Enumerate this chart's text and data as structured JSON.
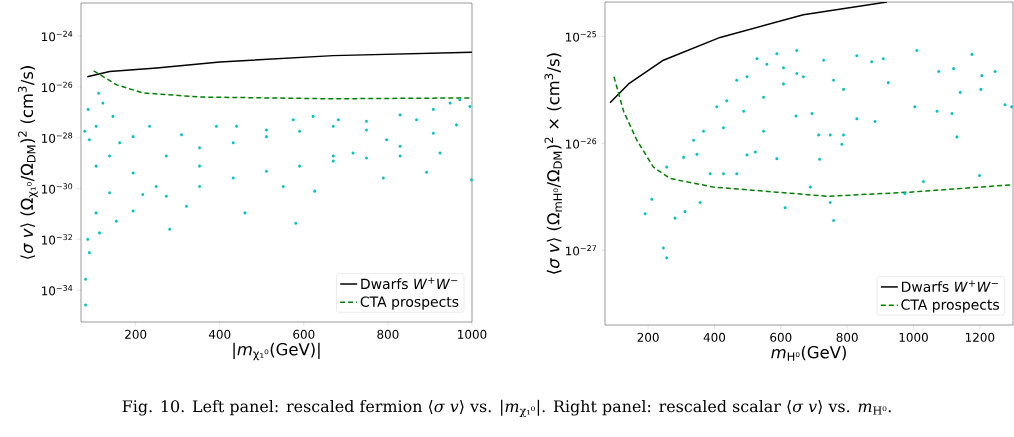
{
  "chart_data": [
    {
      "type": "scatter",
      "xlabel": "|*m*$_{χ₁⁰}$(GeV)|",
      "ylabel": "⟨*σ v*⟩ (Ω$_{χ₁⁰}$/Ω$_{DM}$)$^{2}$ (cm$^{3}$/s)",
      "log": "y",
      "legend": "bottom right",
      "xlim": [
        70,
        1000
      ],
      "ylim": [
        5.6e-36,
        2e-23
      ],
      "xticks": [
        200,
        400,
        600,
        800,
        1000
      ],
      "yticks": [
        {
          "value": 1e-24,
          "label": "10$^{−24}$"
        },
        {
          "value": 1e-26,
          "label": "10$^{−26}$"
        },
        {
          "value": 1e-28,
          "label": "10$^{−28}$"
        },
        {
          "value": 1e-30,
          "label": "10$^{−30}$"
        },
        {
          "value": 1e-32,
          "label": "10$^{−32}$"
        },
        {
          "value": 1e-34,
          "label": "10$^{−34}$"
        }
      ],
      "annotations": [
        "Fig. 10. Left panel: rescaled fermion ⟨*σ v*⟩ vs. |*m*$_{χ₁⁰}$|. Right panel: rescaled scalar ⟨*σ v*⟩ vs. *m*$_{H⁰}$."
      ],
      "series": [
        {
          "color": "#00bfbf",
          "marker": "circle",
          "x": [
            86,
            106,
            138,
            194,
            273,
            352,
            432,
            511,
            590,
            670,
            749,
            829,
            908,
            995,
            81,
            90,
            114,
            154,
            194,
            273,
            352,
            432,
            511,
            590,
            670,
            749,
            829,
            81,
            79,
            87,
            112,
            122,
            146,
            106,
            90,
            106,
            138,
            162,
            194,
            233,
            281,
            309,
            352,
            392,
            460,
            440,
            511,
            575,
            581,
            622,
            626,
            682,
            717,
            749,
            789,
            797,
            829,
            868,
            892,
            924,
            908,
            963,
            971,
            948,
            999,
            670,
            551,
            321,
            249,
            217
          ],
          "values": [
            1e-32,
            1.1e-31,
            6.8e-31,
            4.1e-30,
            1.9e-29,
            4e-29,
            6.3e-29,
            1.1e-28,
            1.8e-28,
            2.8e-28,
            4.4e-28,
            7.9e-28,
            1.3e-27,
            1.7e-27,
            2.7e-34,
            3e-33,
            1.8e-32,
            5.2e-32,
            1.3e-31,
            5e-31,
            1.2e-30,
            2.6e-30,
            4.8e-30,
            7.6e-30,
            1.2e-29,
            1.6e-29,
            1.9e-29,
            2.6e-35,
            1.8e-28,
            1.3e-27,
            5.6e-27,
            2.3e-27,
            6.9e-28,
            2.8e-28,
            8.3e-29,
            7.6e-30,
            1.9e-29,
            6.3e-29,
            1.1e-28,
            2.8e-28,
            2.5e-32,
            1.3e-28,
            7.6e-30,
            2.8e-28,
            1.1e-31,
            2.8e-28,
            2e-28,
            5.1e-28,
            4.3e-32,
            6.9e-28,
            7.9e-31,
            5.1e-28,
            2.5e-29,
            2e-28,
            2.6e-30,
            8.3e-29,
            4.6e-29,
            5.1e-28,
            4.4e-30,
            2.5e-29,
            1.5e-28,
            3.2e-28,
            3.1e-27,
            2.3e-27,
            2.2e-30,
            1.9e-29,
            1.2e-30,
            2e-31,
            1.2e-30,
            5.8e-31
          ]
        },
        {
          "type": "line",
          "name": "Dwarfs *W*$^{+}$*W*$^{−}$",
          "color": "#000000",
          "marker": "none",
          "line_style": "solid",
          "x": [
            85,
            138,
            250,
            400,
            670,
            1000
          ],
          "values": [
            2.5e-26,
            4e-26,
            5.6e-26,
            9.5e-26,
            1.7e-25,
            2.3e-25
          ]
        },
        {
          "type": "line",
          "name": "CTA prospects",
          "color": "#008000",
          "marker": "none",
          "line_style": "dashed",
          "x": [
            100,
            155,
            217,
            352,
            670,
            1000
          ],
          "values": [
            4.3e-26,
            1.2e-26,
            5.8e-27,
            4e-27,
            3.4e-27,
            3.7e-27
          ]
        }
      ]
    },
    {
      "type": "scatter",
      "xlabel": "*m*$_{H⁰}$(GeV)",
      "ylabel": "⟨*σ v*⟩ (Ω$_{mH⁰}$/Ω$_{DM}$)$^{2}$ × (cm$^{3}$/s)",
      "log": "y",
      "legend": "bottom right",
      "xlim": [
        70,
        1300
      ],
      "ylim": [
        2e-28,
        2.1e-25
      ],
      "xticks": [
        200,
        400,
        600,
        800,
        1000,
        1200
      ],
      "yticks": [
        {
          "value": 1e-25,
          "label": "10$^{−25}$"
        },
        {
          "value": 1e-26,
          "label": "10$^{−26}$"
        },
        {
          "value": 1e-27,
          "label": "10$^{−27}$"
        }
      ],
      "series": [
        {
          "color": "#00bfbf",
          "marker": "circle",
          "x": [
            256,
            337,
            407,
            467,
            528,
            588,
            648,
            307,
            367,
            437,
            498,
            558,
            608,
            648,
            347,
            427,
            488,
            548,
            608,
            668,
            191,
            211,
            246,
            256,
            281,
            311,
            357,
            387,
            427,
            467,
            498,
            523,
            548,
            588,
            613,
            646,
            689,
            694,
            714,
            717,
            749,
            759,
            749,
            784,
            789,
            729,
            759,
            789,
            829,
            829,
            874,
            884,
            909,
            924,
            974,
            1010,
            1004,
            1030,
            1071,
            1076,
            1116,
            1121,
            1131,
            1141,
            1176,
            1199,
            1203,
            1206,
            1246,
            1276,
            1296
          ],
          "values": [
            6e-27,
            1.07e-26,
            2.2e-26,
            3.9e-26,
            6.2e-26,
            6.9e-26,
            7.4e-26,
            7.4e-27,
            1.3e-26,
            2.5e-26,
            4.2e-26,
            5.5e-26,
            5.1e-26,
            4.5e-26,
            7.9e-27,
            1.4e-26,
            2e-26,
            2.7e-26,
            3.6e-26,
            4.2e-26,
            2.2e-27,
            3e-27,
            1.05e-27,
            8.5e-28,
            2e-27,
            2.3e-27,
            2.8e-27,
            5.2e-27,
            5.2e-27,
            5.2e-27,
            7.8e-27,
            8.3e-27,
            1.3e-26,
            7.2e-27,
            2.5e-27,
            1.8e-26,
            3.9e-27,
            1.9e-26,
            1.2e-26,
            7.1e-27,
            2.8e-27,
            1.9e-27,
            1.2e-26,
            9.8e-27,
            1.2e-26,
            6e-26,
            3.9e-26,
            3.2e-26,
            6.6e-26,
            1.7e-26,
            5.8e-26,
            1.6e-26,
            6.2e-26,
            3.7e-26,
            3.4e-27,
            7.4e-26,
            2.2e-26,
            4.4e-27,
            2e-26,
            4.7e-26,
            1.9e-26,
            5e-26,
            1.15e-26,
            3e-26,
            6.8e-26,
            5e-27,
            3.2e-26,
            4.3e-26,
            4.7e-26,
            2.3e-26,
            2.2e-26
          ]
        },
        {
          "type": "line",
          "name": "Dwarfs *W*$^{+}$*W*$^{−}$",
          "color": "#000000",
          "marker": "none",
          "line_style": "solid",
          "x": [
            85,
            141,
            246,
            417,
            668,
            920
          ],
          "values": [
            2.4e-26,
            3.6e-26,
            6e-26,
            9.8e-26,
            1.6e-25,
            2.1e-25
          ]
        },
        {
          "type": "line",
          "name": "CTA prospects",
          "color": "#008000",
          "marker": "none",
          "line_style": "dashed",
          "x": [
            97,
            126,
            166,
            216,
            266,
            397,
            588,
            739,
            990,
            1296
          ],
          "values": [
            4.2e-26,
            2e-26,
            1.07e-26,
            6e-27,
            4.7e-27,
            3.9e-27,
            3.5e-27,
            3.2e-27,
            3.5e-27,
            4.1e-27
          ]
        }
      ]
    }
  ]
}
